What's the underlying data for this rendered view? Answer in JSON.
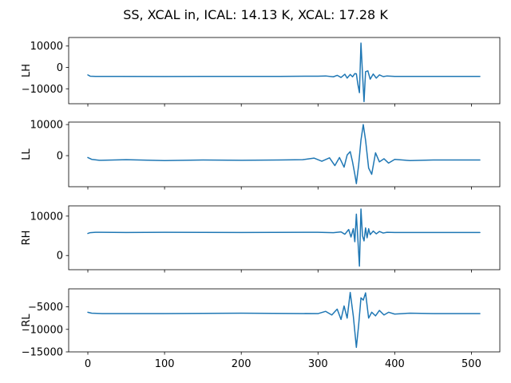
{
  "chart_data": {
    "type": "line",
    "title": "SS, XCAL in, ICAL: 14.13 K, XCAL: 17.28 K",
    "xlim": [
      -25,
      537
    ],
    "xticks": [
      0,
      100,
      200,
      300,
      400,
      500
    ],
    "line_color": "#1f77b4",
    "grid": false,
    "subplots": [
      {
        "ylabel": "LH",
        "ylim": [
          -17000,
          14000
        ],
        "yticks": [
          10000,
          0,
          -10000
        ],
        "ytick_labels": [
          "10000",
          "0",
          "−10000"
        ],
        "x": [
          0,
          3,
          10,
          40,
          100,
          200,
          250,
          300,
          310,
          320,
          325,
          330,
          335,
          338,
          342,
          345,
          348,
          350,
          352,
          354,
          356,
          358,
          360,
          362,
          365,
          368,
          372,
          376,
          380,
          385,
          390,
          400,
          450,
          511
        ],
        "values": [
          -3500,
          -4100,
          -4200,
          -4200,
          -4250,
          -4200,
          -4200,
          -4100,
          -4000,
          -4400,
          -3700,
          -4700,
          -3200,
          -5000,
          -3300,
          -4400,
          -2900,
          -3000,
          -8000,
          -11800,
          11400,
          -3000,
          -16000,
          -2000,
          -1600,
          -5500,
          -3100,
          -5000,
          -3500,
          -4300,
          -4000,
          -4200,
          -4200,
          -4200
        ]
      },
      {
        "ylabel": "LL",
        "ylim": [
          -10000,
          10800
        ],
        "yticks": [
          10000,
          0
        ],
        "ytick_labels": [
          "10000",
          "0"
        ],
        "x": [
          0,
          5,
          15,
          50,
          100,
          150,
          200,
          250,
          280,
          295,
          305,
          315,
          322,
          328,
          334,
          338,
          342,
          345,
          348,
          350,
          353,
          356,
          359,
          362,
          366,
          370,
          375,
          380,
          386,
          392,
          400,
          420,
          450,
          511
        ],
        "values": [
          -600,
          -1200,
          -1500,
          -1300,
          -1600,
          -1400,
          -1500,
          -1400,
          -1300,
          -800,
          -1800,
          -700,
          -3200,
          -600,
          -3700,
          200,
          1300,
          -2000,
          -6000,
          -9000,
          -3000,
          5000,
          10000,
          5000,
          -4000,
          -6000,
          900,
          -2000,
          -1000,
          -2400,
          -1200,
          -1600,
          -1400,
          -1400
        ]
      },
      {
        "ylabel": "RH",
        "ylim": [
          -3600,
          12600
        ],
        "yticks": [
          10000,
          0
        ],
        "ytick_labels": [
          "10000",
          "0"
        ],
        "x": [
          0,
          3,
          10,
          50,
          100,
          200,
          300,
          320,
          330,
          335,
          340,
          343,
          346,
          348,
          350,
          352,
          354,
          356,
          358,
          360,
          362,
          364,
          366,
          368,
          372,
          376,
          380,
          385,
          390,
          400,
          450,
          511
        ],
        "values": [
          5600,
          5800,
          5900,
          5850,
          5900,
          5850,
          5900,
          5800,
          6000,
          5400,
          6600,
          4700,
          6800,
          3500,
          10500,
          4000,
          -2700,
          11800,
          5000,
          3700,
          7000,
          4500,
          6800,
          5300,
          6200,
          5500,
          6100,
          5700,
          5900,
          5850,
          5850,
          5850
        ]
      },
      {
        "ylabel": "RL",
        "ylim": [
          -15000,
          -1000
        ],
        "yticks": [
          -5000,
          -10000,
          -15000
        ],
        "ytick_labels": [
          "−5000",
          "−10000",
          "−15000"
        ],
        "x": [
          0,
          5,
          20,
          100,
          200,
          300,
          310,
          318,
          325,
          330,
          334,
          338,
          342,
          346,
          350,
          353,
          356,
          359,
          362,
          366,
          370,
          375,
          380,
          386,
          392,
          400,
          420,
          450,
          511
        ],
        "values": [
          -6200,
          -6400,
          -6500,
          -6500,
          -6400,
          -6500,
          -6000,
          -6800,
          -5500,
          -7800,
          -4800,
          -7500,
          -1800,
          -7000,
          -14000,
          -9000,
          -3000,
          -3500,
          -1900,
          -7500,
          -6200,
          -7000,
          -5800,
          -6800,
          -6200,
          -6600,
          -6400,
          -6500,
          -6500
        ]
      }
    ]
  }
}
